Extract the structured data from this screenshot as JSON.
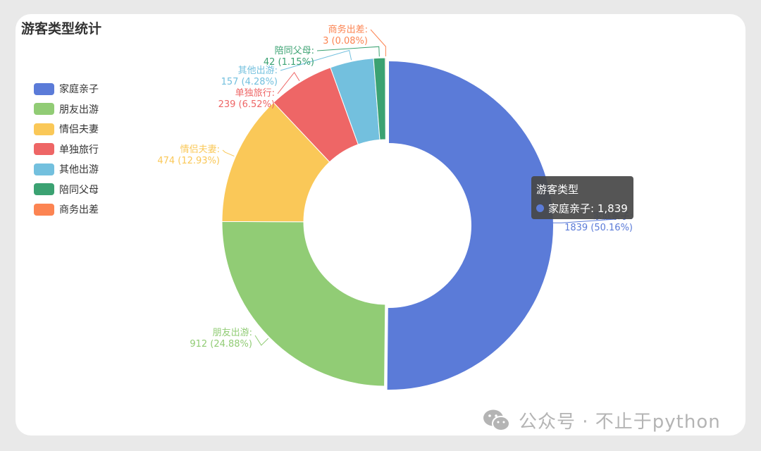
{
  "chart_data": {
    "type": "pie",
    "variant": "donut",
    "title": "游客类型统计",
    "legend_position": "left",
    "categories": [
      "家庭亲子",
      "朋友出游",
      "情侣夫妻",
      "单独旅行",
      "其他出游",
      "陪同父母",
      "商务出差"
    ],
    "values": [
      1839,
      912,
      474,
      239,
      157,
      42,
      3
    ],
    "percent_labels": [
      "50.16%",
      "24.88%",
      "12.93%",
      "6.52%",
      "4.28%",
      "1.15%",
      "0.08%"
    ],
    "colors": [
      "#5b7bd8",
      "#91cc75",
      "#fac858",
      "#ee6666",
      "#73c0de",
      "#3ba272",
      "#fc8452"
    ],
    "tooltip": {
      "title": "游客类型",
      "category": "家庭亲子",
      "value": "1,839"
    }
  },
  "watermark": {
    "text": "公众号 · 不止于python",
    "icon": "wechat-icon"
  }
}
